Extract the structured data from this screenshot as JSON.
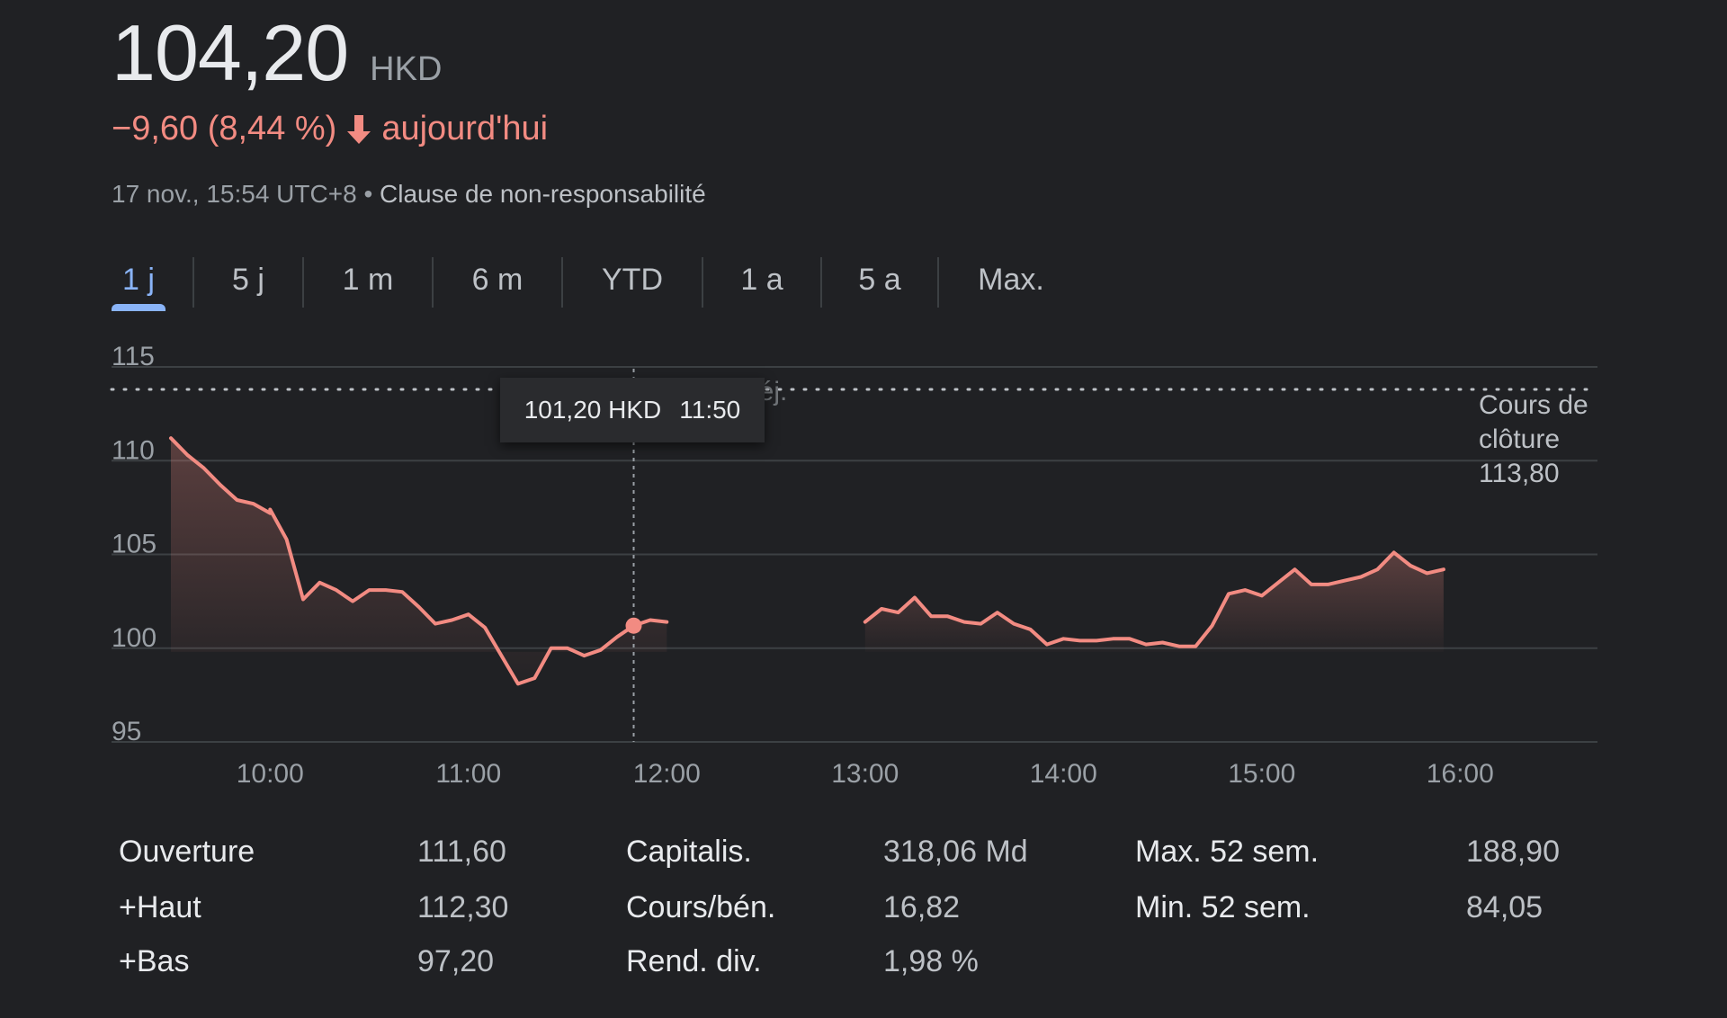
{
  "quote": {
    "price": "104,20",
    "currency": "HKD",
    "change": "−9,60 (8,44 %)",
    "change_suffix": "aujourd'hui",
    "timestamp": "17 nov., 15:54 UTC+8",
    "separator": "•",
    "disclaimer": "Clause de non-responsabilité"
  },
  "tabs": [
    {
      "label": "1 j",
      "active": true
    },
    {
      "label": "5 j"
    },
    {
      "label": "1 m"
    },
    {
      "label": "6 m"
    },
    {
      "label": "YTD"
    },
    {
      "label": "1 a"
    },
    {
      "label": "5 a"
    },
    {
      "label": "Max."
    }
  ],
  "colors": {
    "background": "#202124",
    "negative": "#f28b82",
    "accent": "#8ab4f8",
    "grid": "#3c4043",
    "text": "#e8eaed",
    "muted": "#9aa0a6"
  },
  "tooltip": {
    "price": "101,20 HKD",
    "time": "11:50"
  },
  "previous_close": {
    "line1": "Cours de",
    "line2": "clôture",
    "value": "113,80",
    "ghost_label": "Déj."
  },
  "chart_data": {
    "type": "line",
    "ylim": [
      95,
      115
    ],
    "yticks": [
      "115",
      "110",
      "105",
      "100",
      "95"
    ],
    "xticks": [
      "10:00",
      "11:00",
      "12:00",
      "13:00",
      "14:00",
      "15:00",
      "16:00"
    ],
    "previous_close": 113.8,
    "grid": true,
    "hover": {
      "time": "11:50",
      "value": 101.2
    },
    "series": [
      {
        "session": "morning",
        "points": [
          [
            "09:30",
            111.2
          ],
          [
            "09:35",
            110.3
          ],
          [
            "09:40",
            109.6
          ],
          [
            "09:45",
            108.7
          ],
          [
            "09:50",
            107.9
          ],
          [
            "09:55",
            107.7
          ],
          [
            "10:00",
            107.2
          ],
          [
            "10:00",
            107.4
          ],
          [
            "10:05",
            105.8
          ],
          [
            "10:10",
            102.6
          ],
          [
            "10:15",
            103.5
          ],
          [
            "10:20",
            103.1
          ],
          [
            "10:25",
            102.5
          ],
          [
            "10:30",
            103.1
          ],
          [
            "10:35",
            103.1
          ],
          [
            "10:40",
            103.0
          ],
          [
            "10:45",
            102.2
          ],
          [
            "10:50",
            101.3
          ],
          [
            "10:55",
            101.5
          ],
          [
            "11:00",
            101.8
          ],
          [
            "11:05",
            101.1
          ],
          [
            "11:10",
            99.6
          ],
          [
            "11:15",
            98.1
          ],
          [
            "11:20",
            98.4
          ],
          [
            "11:25",
            100.0
          ],
          [
            "11:30",
            100.0
          ],
          [
            "11:35",
            99.6
          ],
          [
            "11:40",
            99.9
          ],
          [
            "11:45",
            100.6
          ],
          [
            "11:50",
            101.2
          ],
          [
            "11:55",
            101.5
          ],
          [
            "12:00",
            101.4
          ]
        ]
      },
      {
        "session": "afternoon",
        "points": [
          [
            "13:00",
            101.4
          ],
          [
            "13:05",
            102.1
          ],
          [
            "13:10",
            101.9
          ],
          [
            "13:15",
            102.7
          ],
          [
            "13:20",
            101.7
          ],
          [
            "13:25",
            101.7
          ],
          [
            "13:30",
            101.4
          ],
          [
            "13:35",
            101.3
          ],
          [
            "13:40",
            101.9
          ],
          [
            "13:45",
            101.3
          ],
          [
            "13:50",
            101.0
          ],
          [
            "13:55",
            100.2
          ],
          [
            "14:00",
            100.5
          ],
          [
            "14:05",
            100.4
          ],
          [
            "14:10",
            100.4
          ],
          [
            "14:15",
            100.5
          ],
          [
            "14:20",
            100.5
          ],
          [
            "14:25",
            100.2
          ],
          [
            "14:30",
            100.3
          ],
          [
            "14:35",
            100.1
          ],
          [
            "14:40",
            100.1
          ],
          [
            "14:45",
            101.2
          ],
          [
            "14:50",
            102.9
          ],
          [
            "14:55",
            103.1
          ],
          [
            "15:00",
            102.8
          ],
          [
            "15:05",
            103.5
          ],
          [
            "15:10",
            104.2
          ],
          [
            "15:15",
            103.4
          ],
          [
            "15:20",
            103.4
          ],
          [
            "15:25",
            103.6
          ],
          [
            "15:30",
            103.8
          ],
          [
            "15:35",
            104.2
          ],
          [
            "15:40",
            105.1
          ],
          [
            "15:45",
            104.4
          ],
          [
            "15:50",
            104.0
          ],
          [
            "15:55",
            104.2
          ]
        ]
      }
    ]
  },
  "stats": [
    {
      "label": "Ouverture",
      "value": "111,60"
    },
    {
      "label": "+Haut",
      "value": "112,30"
    },
    {
      "label": "+Bas",
      "value": "97,20"
    },
    {
      "label": "Capitalis.",
      "value": "318,06 Md"
    },
    {
      "label": "Cours/bén.",
      "value": "16,82"
    },
    {
      "label": "Rend. div.",
      "value": "1,98 %"
    },
    {
      "label": "Max. 52 sem.",
      "value": "188,90"
    },
    {
      "label": "Min. 52 sem.",
      "value": "84,05"
    }
  ]
}
